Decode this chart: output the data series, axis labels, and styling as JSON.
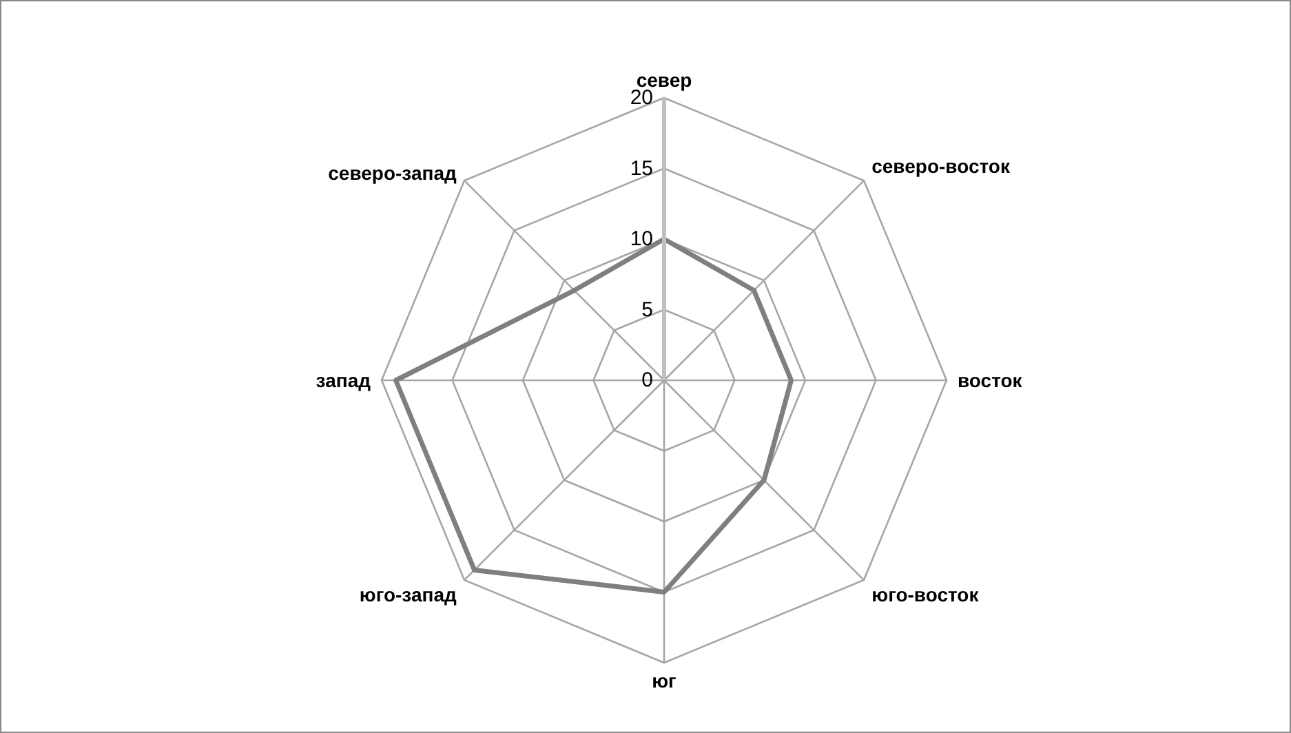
{
  "chart_data": {
    "type": "radar",
    "categories": [
      "север",
      "северо-восток",
      "восток",
      "юго-восток",
      "юг",
      "юго-запад",
      "запад",
      "северо-запад"
    ],
    "series": [
      {
        "color": "#7f7f7f",
        "values": [
          10,
          9,
          9,
          10,
          15,
          19,
          19,
          9
        ]
      }
    ],
    "ylim": [
      0,
      20
    ],
    "yticks": [
      0,
      5,
      10,
      15,
      20
    ],
    "grid": true,
    "legend": false,
    "marker": "none"
  }
}
